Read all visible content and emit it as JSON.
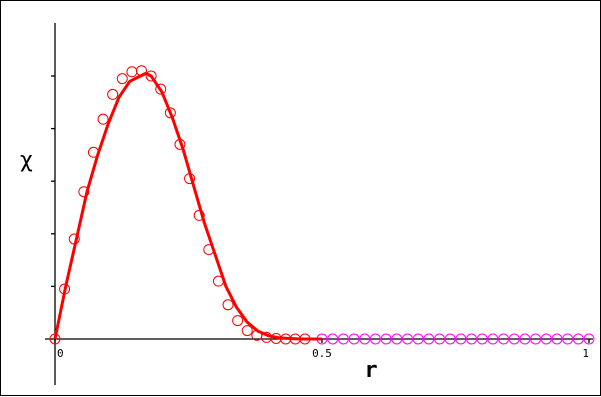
{
  "chart_data": {
    "type": "line",
    "title": "",
    "xlabel": "r",
    "ylabel": "χ",
    "xlim": [
      0,
      1
    ],
    "ylim": [
      -0.08,
      0.56
    ],
    "x_ticks": [
      0,
      0.5,
      1
    ],
    "x_tick_labels": [
      "0",
      "0.5",
      "1"
    ],
    "y_ticks": [
      0.1,
      0.2,
      0.3,
      0.4,
      0.5
    ],
    "y_tick_labels": [],
    "grid": false,
    "legend": "none",
    "colors": {
      "curve": "#ff0000",
      "markers_main": "#ff0000",
      "markers_tail": "#ff00ff",
      "axes": "#000000"
    },
    "series": [
      {
        "role": "curve",
        "x": [
          0,
          0.02,
          0.04,
          0.06,
          0.08,
          0.1,
          0.12,
          0.14,
          0.16,
          0.17,
          0.18,
          0.2,
          0.22,
          0.24,
          0.26,
          0.28,
          0.3,
          0.32,
          0.34,
          0.36,
          0.38,
          0.4,
          0.42,
          0.44,
          0.46,
          0.48,
          0.5
        ],
        "y": [
          0,
          0.1,
          0.19,
          0.28,
          0.35,
          0.41,
          0.46,
          0.49,
          0.5,
          0.505,
          0.5,
          0.47,
          0.42,
          0.36,
          0.29,
          0.22,
          0.16,
          0.1,
          0.06,
          0.032,
          0.015,
          0.006,
          0.002,
          0.001,
          0,
          0,
          0
        ]
      },
      {
        "role": "markers_main",
        "x": [
          0,
          0.018,
          0.036,
          0.054,
          0.072,
          0.09,
          0.108,
          0.126,
          0.144,
          0.162,
          0.18,
          0.198,
          0.216,
          0.234,
          0.252,
          0.27,
          0.288,
          0.306,
          0.324,
          0.342,
          0.36,
          0.378,
          0.396,
          0.414,
          0.432,
          0.45,
          0.468
        ],
        "y": [
          0,
          0.095,
          0.19,
          0.28,
          0.355,
          0.418,
          0.465,
          0.495,
          0.508,
          0.51,
          0.5,
          0.475,
          0.43,
          0.37,
          0.305,
          0.235,
          0.17,
          0.11,
          0.065,
          0.035,
          0.016,
          0.007,
          0.003,
          0.001,
          0,
          0,
          0
        ]
      },
      {
        "role": "markers_tail",
        "x": [
          0.5,
          0.52,
          0.54,
          0.56,
          0.58,
          0.6,
          0.62,
          0.64,
          0.66,
          0.68,
          0.7,
          0.72,
          0.74,
          0.76,
          0.78,
          0.8,
          0.82,
          0.84,
          0.86,
          0.88,
          0.9,
          0.92,
          0.94,
          0.96,
          0.98,
          1.0
        ],
        "y": [
          0,
          0,
          0,
          0,
          0,
          0,
          0,
          0,
          0,
          0,
          0,
          0,
          0,
          0,
          0,
          0,
          0,
          0,
          0,
          0,
          0,
          0,
          0,
          0,
          0,
          0
        ]
      }
    ]
  }
}
